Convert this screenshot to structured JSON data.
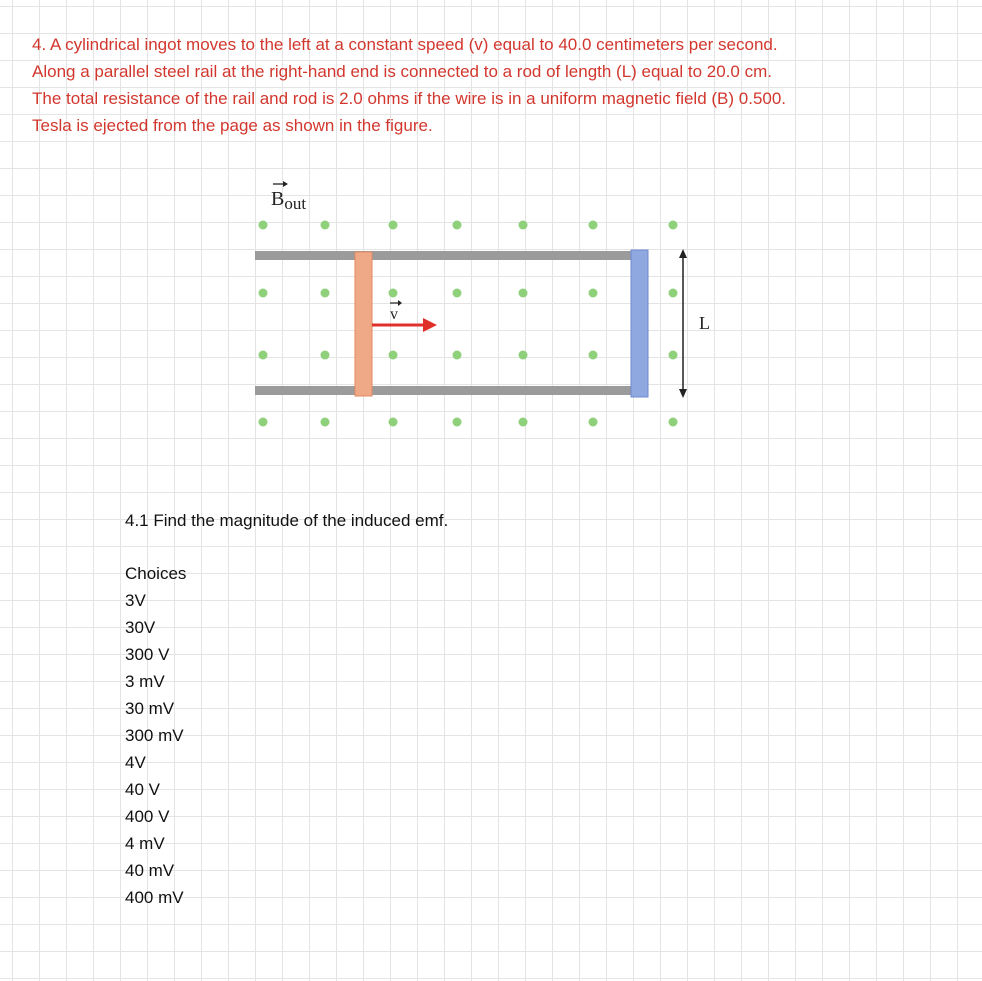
{
  "problem": {
    "lines": [
      "4. A cylindrical ingot moves to the left at a constant speed (v) equal to 40.0 centimeters per second.",
      "Along a parallel steel rail at the right-hand end is connected to a rod of length (L) equal to 20.0 cm.",
      "The total resistance of the rail and rod is 2.0 ohms if the wire is in a uniform magnetic field (B) 0.500.",
      "Tesla is ejected from the page as shown in the figure."
    ]
  },
  "figure": {
    "field_symbol": "B",
    "field_subscript": "out",
    "velocity_symbol": "v",
    "length_symbol": "L"
  },
  "subquestion": "4.1 Find the magnitude of the induced emf.",
  "choices_label": "Choices",
  "choices": [
    "3V",
    "30V",
    "300 V",
    "3 mV",
    "30 mV",
    "300 mV",
    "4V",
    "40 V",
    "400 V",
    "4 mV",
    "40 mV",
    "400 mV"
  ]
}
